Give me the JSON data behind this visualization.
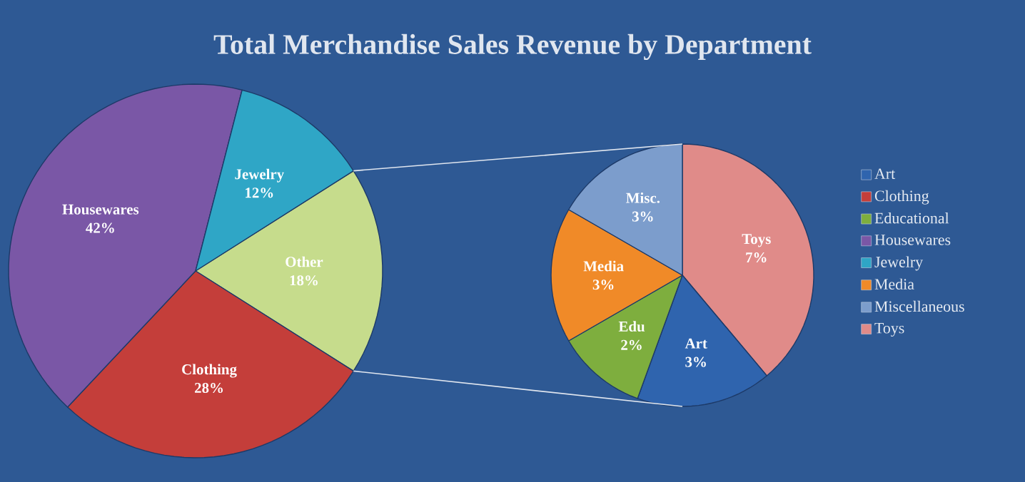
{
  "chart_data": [
    {
      "type": "pie",
      "title": "Total Merchandise Sales Revenue by Department",
      "categories": [
        "Other",
        "Clothing",
        "Housewares",
        "Jewelry"
      ],
      "values": [
        18,
        28,
        42,
        12
      ],
      "value_labels": [
        "18%",
        "28%",
        "42%",
        "12%"
      ],
      "colors": [
        "#c6dc8c",
        "#c43e3a",
        "#7a57a6",
        "#2fa6c6"
      ]
    },
    {
      "type": "pie",
      "categories": [
        "Toys",
        "Art",
        "Edu",
        "Media",
        "Misc."
      ],
      "values": [
        7,
        3,
        2,
        3,
        3
      ],
      "value_labels": [
        "7%",
        "3%",
        "2%",
        "3%",
        "3%"
      ],
      "colors": [
        "#e08b89",
        "#2f64ae",
        "#7eae3e",
        "#f08a28",
        "#7c9dcc"
      ]
    },
    {
      "type": "other",
      "categories": [
        "Art",
        "Clothing",
        "Educational",
        "Housewares",
        "Jewelry",
        "Media",
        "Miscellaneous",
        "Toys"
      ],
      "colors": [
        "#2f64ae",
        "#c43e3a",
        "#7eae3e",
        "#7a57a6",
        "#2fa6c6",
        "#f08a28",
        "#7c9dcc",
        "#e08b89"
      ]
    }
  ]
}
